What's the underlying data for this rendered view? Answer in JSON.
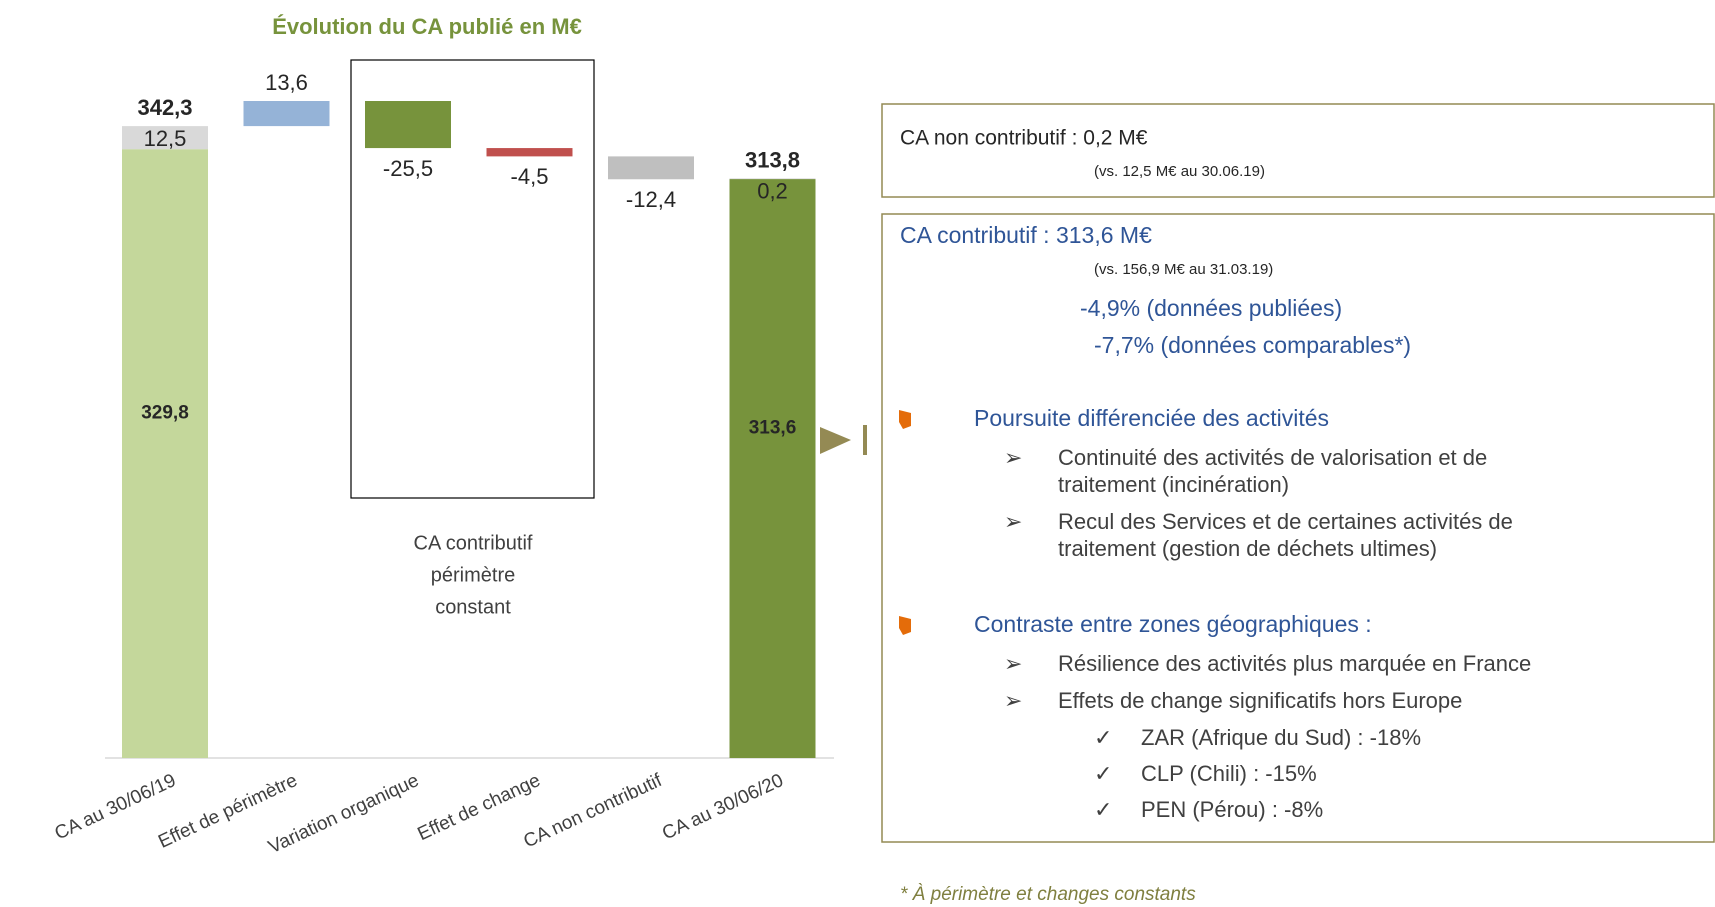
{
  "chart_data": {
    "type": "waterfall",
    "title": "Évolution du CA publié en M€",
    "categories": [
      "CA au 30/06/19",
      "Effet de périmètre",
      "Variation organique",
      "Effet de change",
      "CA non contributif",
      "CA au 30/06/20"
    ],
    "base": {
      "values": [
        329.8,
        null,
        null,
        null,
        null,
        313.6
      ],
      "value_labels": [
        "329,8",
        null,
        null,
        null,
        null,
        "313,6"
      ],
      "colors": [
        "#c4d79b",
        null,
        null,
        null,
        null,
        "#77933c"
      ]
    },
    "extra": {
      "values": [
        12.5,
        null,
        null,
        null,
        null,
        0.2
      ],
      "value_labels": [
        "12,5",
        null,
        null,
        null,
        null,
        "0,2"
      ],
      "colors": [
        "#d9d9d9",
        null,
        null,
        null,
        null,
        "#a6a6a6"
      ]
    },
    "deltas": {
      "values": [
        null,
        13.6,
        -25.5,
        -4.5,
        -12.4,
        null
      ],
      "value_labels": [
        null,
        "13,6",
        "-25,5",
        "-4,5",
        "-12,4",
        null
      ],
      "colors": [
        null,
        "#95b3d7",
        "#77933c",
        "#c0504d",
        "#bfbfbf",
        null
      ]
    },
    "totals": {
      "values": [
        342.3,
        null,
        null,
        null,
        null,
        313.8
      ],
      "value_labels": [
        "342,3",
        null,
        null,
        null,
        null,
        "313,8"
      ]
    },
    "annotation": [
      "CA contributif",
      "périmètre",
      "constant"
    ]
  },
  "panels": {
    "non_contributive": {
      "title": "CA non contributif  : 0,2 M€",
      "note": "(vs. 12,5 M€ au 30.06.19)"
    },
    "contributive": {
      "title": "CA contributif : 313,6 M€",
      "note": "(vs. 156,9 M€ au 31.03.19)",
      "stats": [
        "-4,9% (données publiées)",
        "-7,7% (données comparables*)"
      ],
      "sections": [
        {
          "heading": "Poursuite différenciée des activités",
          "items": [
            {
              "lines": [
                "Continuité des activités de valorisation et de",
                "traitement (incinération)"
              ]
            },
            {
              "lines": [
                "Recul des Services et de certaines activités de",
                "traitement (gestion de déchets ultimes)"
              ]
            }
          ]
        },
        {
          "heading": "Contraste entre zones géographiques :",
          "items": [
            {
              "lines": [
                "Résilience des activités plus marquée en France"
              ]
            },
            {
              "lines": [
                "Effets de change significatifs hors Europe"
              ],
              "subitems": [
                "ZAR (Afrique du Sud) : -18%",
                "CLP (Chili) : -15%",
                "PEN (Pérou) : -8%"
              ]
            }
          ]
        }
      ]
    },
    "footnote": "* À périmètre et changes constants"
  }
}
